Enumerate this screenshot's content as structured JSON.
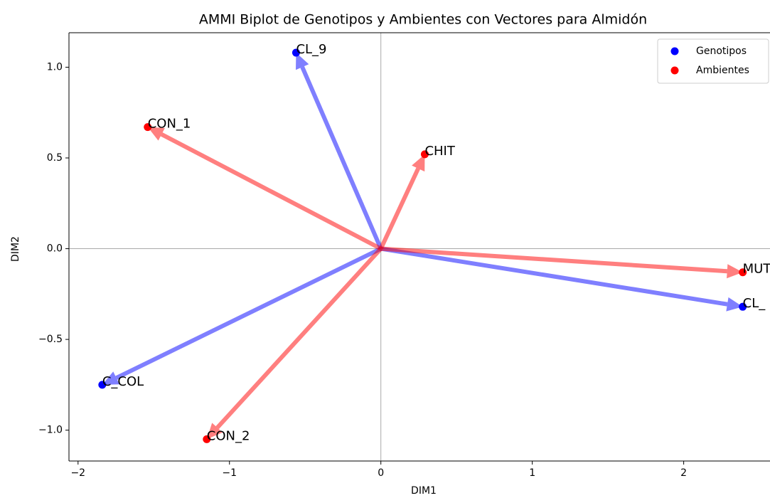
{
  "chart_data": {
    "type": "scatter",
    "title": "AMMI Biplot de Genotipos y Ambientes con Vectores para Almidón",
    "x_label": "DIM1",
    "y_label": "DIM2",
    "series": [
      {
        "name": "Genotipos",
        "color": "#0000ff",
        "arrow_color": "#0000ff",
        "labels": [
          "CL_9",
          "C_COL",
          "CL_"
        ],
        "x": [
          -0.56,
          -1.84,
          2.39
        ],
        "values": [
          1.08,
          -0.75,
          -0.32
        ]
      },
      {
        "name": "Ambientes",
        "color": "#ff0000",
        "arrow_color": "#ff0000",
        "labels": [
          "CON_1",
          "CHIT",
          "MUT",
          "CON_2"
        ],
        "x": [
          -1.54,
          0.29,
          2.39,
          -1.15
        ],
        "values": [
          0.67,
          0.52,
          -0.13,
          -1.05
        ]
      }
    ],
    "xlim": [
      -2.06,
      2.57
    ],
    "ylim": [
      -1.17,
      1.19
    ],
    "xticks": [
      {
        "value": -2,
        "label": "−2"
      },
      {
        "value": -1,
        "label": "−1"
      },
      0,
      1,
      2
    ],
    "yticks": [
      {
        "value": -1,
        "label": "−1.0"
      },
      {
        "value": -0.5,
        "label": "−0.5"
      },
      {
        "value": 0,
        "label": "0.0"
      },
      {
        "value": 0.5,
        "label": "0.5"
      },
      {
        "value": 1,
        "label": "1.0"
      }
    ],
    "legend": "upper right"
  }
}
